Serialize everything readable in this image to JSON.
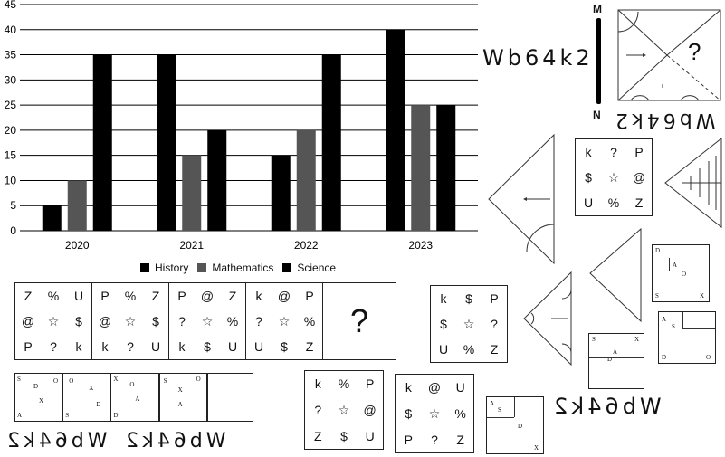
{
  "chart_data": {
    "type": "bar",
    "categories": [
      "2020",
      "2021",
      "2022",
      "2023"
    ],
    "series": [
      {
        "name": "History",
        "values": [
          5,
          35,
          15,
          40
        ],
        "color": "#000000"
      },
      {
        "name": "Mathematics",
        "values": [
          10,
          15,
          20,
          25
        ],
        "color": "#555555"
      },
      {
        "name": "Science",
        "values": [
          35,
          20,
          35,
          25
        ],
        "color": "#000000"
      }
    ],
    "yticks": [
      "0",
      "5",
      "10",
      "15",
      "20",
      "25",
      "30",
      "35",
      "40",
      "45"
    ],
    "ylim": [
      0,
      45
    ],
    "grid": "horizontal",
    "legend_position": "bottom"
  },
  "code_text": "Wb64k2",
  "code_flipped": "Wb64k2",
  "code_mirror_bottom_left": "Wb64k2",
  "code_mirror_bottom_left2": "Wb64k2",
  "code_mirror_right": "Wb64k2",
  "scale_top": "M",
  "scale_bottom": "N",
  "question_mark": "?",
  "seq_boxes": [
    [
      "Z",
      "%",
      "U",
      "@",
      "☆",
      "$",
      "P",
      "?",
      "k"
    ],
    [
      "P",
      "%",
      "Z",
      "@",
      "☆",
      "$",
      "k",
      "?",
      "U"
    ],
    [
      "P",
      "@",
      "Z",
      "?",
      "☆",
      "%",
      "k",
      "$",
      "U"
    ],
    [
      "k",
      "@",
      "P",
      "?",
      "☆",
      "%",
      "U",
      "$",
      "Z"
    ]
  ],
  "option_grids": [
    {
      "name": "option-top-right",
      "cells": [
        "k",
        "?",
        "P",
        "$",
        "☆",
        "@",
        "U",
        "%",
        "Z"
      ]
    },
    {
      "name": "option-mid",
      "cells": [
        "k",
        "$",
        "P",
        "$",
        "☆",
        "?",
        "U",
        "%",
        "Z"
      ]
    },
    {
      "name": "option-bottom-a",
      "cells": [
        "k",
        "%",
        "P",
        "?",
        "☆",
        "@",
        "Z",
        "$",
        "U"
      ]
    },
    {
      "name": "option-bottom-b",
      "cells": [
        "k",
        "@",
        "U",
        "$",
        "☆",
        "%",
        "P",
        "?",
        "Z"
      ]
    }
  ],
  "letter_squares": {
    "a": [
      "D",
      "A",
      "O",
      "S",
      "X"
    ],
    "b": [
      "A",
      "S",
      "D",
      "O"
    ],
    "c": [
      "S",
      "X",
      "A",
      "D"
    ],
    "d": [
      "A",
      "S",
      "D",
      "X"
    ],
    "strip1": [
      "S",
      "D",
      "O",
      "A",
      "X"
    ],
    "strip2": [
      "S",
      "O",
      "X",
      "D"
    ],
    "strip3": [
      "X",
      "O",
      "A",
      "D"
    ],
    "strip4": [
      "O",
      "S",
      "X",
      "A"
    ]
  }
}
